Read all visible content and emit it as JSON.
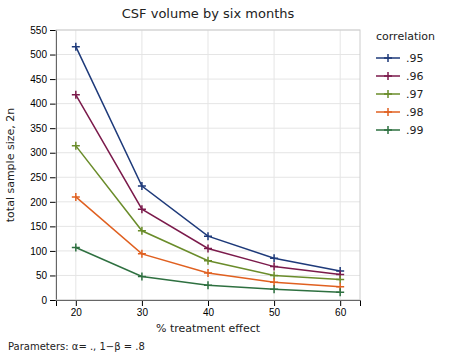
{
  "chart_data": {
    "type": "line",
    "title": "CSF volume by six months",
    "x_label": "% treatment effect",
    "y_label": "total sample size, 2n",
    "footnote": "Parameters: α= ., 1−β = .8",
    "legend_title": "correlation",
    "x": [
      20,
      30,
      40,
      50,
      60
    ],
    "series": [
      {
        "name": ".95",
        "color": "#1e3a7a",
        "marker": "+",
        "values": [
          516,
          232,
          130,
          85,
          59
        ]
      },
      {
        "name": ".96",
        "color": "#7b1a4b",
        "marker": "+",
        "values": [
          418,
          185,
          105,
          68,
          52
        ]
      },
      {
        "name": ".97",
        "color": "#6a8c2a",
        "marker": "+",
        "values": [
          314,
          141,
          80,
          50,
          42
        ]
      },
      {
        "name": ".98",
        "color": "#e06020",
        "marker": "+",
        "values": [
          210,
          94,
          55,
          36,
          27
        ]
      },
      {
        "name": ".99",
        "color": "#2e7040",
        "marker": "+",
        "values": [
          107,
          48,
          30,
          22,
          16
        ]
      }
    ],
    "xlim": [
      17,
      63
    ],
    "ylim": [
      0,
      550
    ],
    "xticks": [
      20,
      30,
      40,
      50,
      60
    ],
    "yticks": [
      0,
      50,
      100,
      150,
      200,
      250,
      300,
      350,
      400,
      450,
      500,
      550
    ],
    "grid": true,
    "legend": "right"
  }
}
